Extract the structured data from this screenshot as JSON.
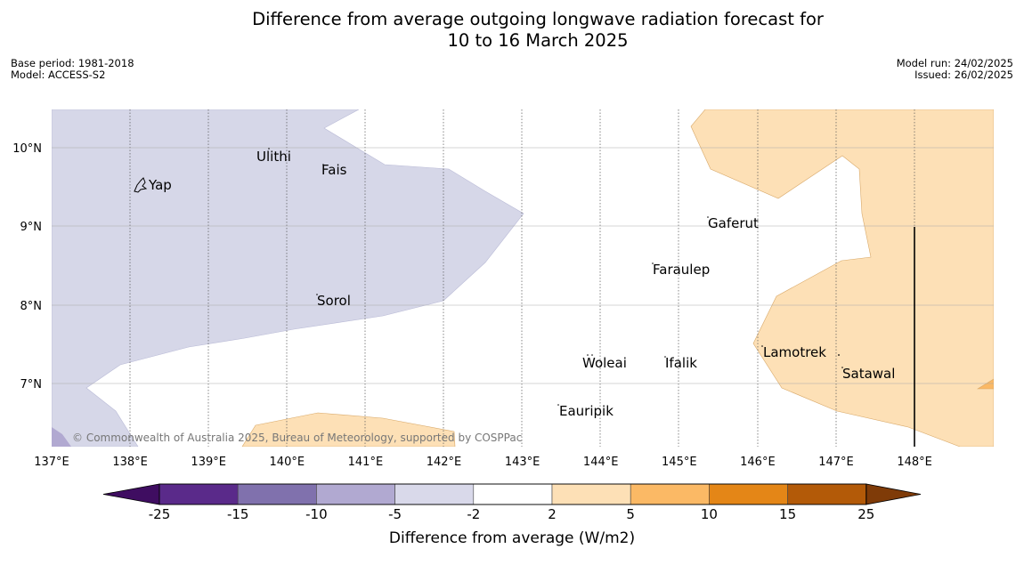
{
  "title": {
    "line1": "Difference from average outgoing longwave radiation forecast for",
    "line2": "10 to 16 March 2025"
  },
  "meta_left": {
    "base_period": "Base period: 1981-2018",
    "model": "Model: ACCESS-S2"
  },
  "meta_right": {
    "model_run": "Model run: 24/02/2025",
    "issued": "Issued: 26/02/2025"
  },
  "map": {
    "lon_ticks": [
      "137°E",
      "138°E",
      "139°E",
      "140°E",
      "141°E",
      "142°E",
      "143°E",
      "144°E",
      "145°E",
      "146°E",
      "147°E",
      "148°E"
    ],
    "lat_ticks": [
      "10°N",
      "9°N",
      "8°N",
      "7°N"
    ],
    "places": [
      {
        "name": "Yap",
        "lon": 138.2,
        "lat": 9.5
      },
      {
        "name": "Ulithi",
        "lon": 139.65,
        "lat": 9.85
      },
      {
        "name": "Fais",
        "lon": 140.4,
        "lat": 9.72
      },
      {
        "name": "Gaferut",
        "lon": 145.35,
        "lat": 9.02
      },
      {
        "name": "Faraulep",
        "lon": 144.6,
        "lat": 8.43
      },
      {
        "name": "Sorol",
        "lon": 140.35,
        "lat": 8.03
      },
      {
        "name": "Lamotrek",
        "lon": 146.05,
        "lat": 7.37
      },
      {
        "name": "Woleai",
        "lon": 143.8,
        "lat": 7.25
      },
      {
        "name": "Ifalik",
        "lon": 144.75,
        "lat": 7.25
      },
      {
        "name": "Satawal",
        "lon": 147.05,
        "lat": 7.12
      },
      {
        "name": "Eauripik",
        "lon": 143.45,
        "lat": 6.63
      }
    ],
    "copyright": "© Commonwealth of Australia 2025, Bureau of Meteorology, supported by COSPPac"
  },
  "colorbar": {
    "ticks": [
      "-25",
      "-15",
      "-10",
      "-5",
      "-2",
      "2",
      "5",
      "10",
      "15",
      "25"
    ],
    "colors": [
      "#3f0d61",
      "#5a2a8a",
      "#8071ad",
      "#b1a9d1",
      "#d9d9ea",
      "#ffffff",
      "#fde0b6",
      "#fbb965",
      "#e48617",
      "#b35a08",
      "#7f3b08"
    ],
    "label": "Difference from average (W/m2)"
  }
}
